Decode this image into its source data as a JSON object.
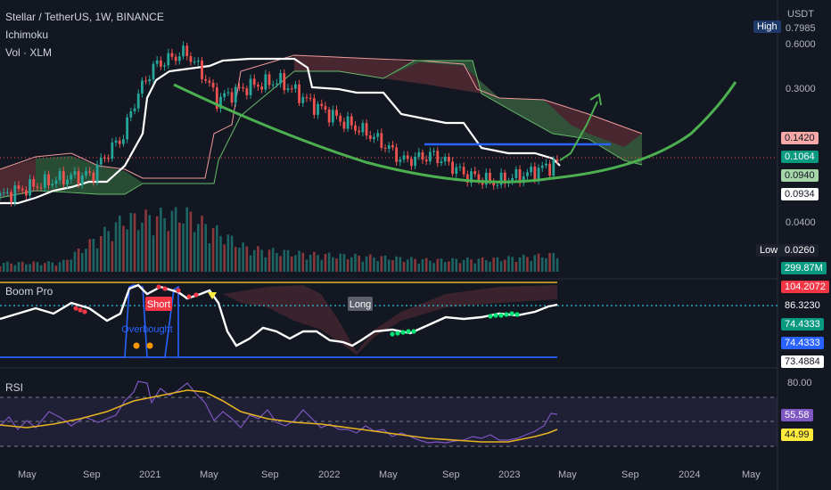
{
  "header": {
    "symbol_line": "Stellar / TetherUS, 1W, BINANCE",
    "indicator_1": "Ichimoku",
    "indicator_2": "Vol · XLM"
  },
  "price_axis": {
    "unit": "USDT",
    "ticks": [
      "0.7985",
      "0.6000",
      "0.3000",
      "0.0400"
    ],
    "high_label": "High",
    "low_label": "Low",
    "badges": [
      {
        "text": "0.1420",
        "bg": "#f7a9a7",
        "fg": "#131722"
      },
      {
        "text": "0.1064",
        "bg": "#089981",
        "fg": "#ffffff"
      },
      {
        "text": "0.0940",
        "bg": "#a5d6a7",
        "fg": "#131722"
      },
      {
        "text": "0.0934",
        "bg": "#ffffff",
        "fg": "#131722"
      },
      {
        "text": "0.0260",
        "bg": "#1e222d",
        "fg": "#ffffff"
      },
      {
        "text": "299.87M",
        "bg": "#089981",
        "fg": "#ffffff"
      }
    ]
  },
  "boom_pane": {
    "title": "Boom Pro",
    "short_label": "Short",
    "long_label": "Long",
    "overbought_label": "Overbought",
    "badges": [
      {
        "text": "104.2072",
        "bg": "#f23645",
        "fg": "#ffffff"
      },
      {
        "text": "86.3230",
        "bg": "#131722",
        "fg": "#ffffff"
      },
      {
        "text": "74.4333",
        "bg": "#089981",
        "fg": "#ffffff"
      },
      {
        "text": "74.4333",
        "bg": "#2962ff",
        "fg": "#ffffff"
      },
      {
        "text": "73.4884",
        "bg": "#ffffff",
        "fg": "#131722"
      }
    ]
  },
  "rsi_pane": {
    "title": "RSI",
    "tick": "80.00",
    "badges": [
      {
        "text": "55.58",
        "bg": "#7e57c2",
        "fg": "#ffffff"
      },
      {
        "text": "44.99",
        "bg": "#ffeb3b",
        "fg": "#131722"
      }
    ]
  },
  "time_axis": [
    "May",
    "Sep",
    "2021",
    "May",
    "Sep",
    "2022",
    "May",
    "Sep",
    "2023",
    "May",
    "Sep",
    "2024",
    "May"
  ],
  "colors": {
    "background": "#131722",
    "up": "#26a69a",
    "down": "#ef5350",
    "base_line": "#ffffff",
    "cup_curve": "#4caf50",
    "resistance": "#2962ff",
    "cloud_bull": "#2e5b3a",
    "cloud_bear": "#5b2e35",
    "rsi": "#7e57c2",
    "rsi_ma": "#e6b422"
  },
  "chart_data": [
    {
      "type": "line",
      "title": "Stellar / TetherUS, 1W, BINANCE",
      "xlabel": "",
      "ylabel": "USDT",
      "scale": "log",
      "ylim": [
        0.026,
        0.7985
      ],
      "x": [
        "2020-05",
        "2020-07",
        "2020-09",
        "2020-11",
        "2021-01",
        "2021-03",
        "2021-05",
        "2021-07",
        "2021-09",
        "2021-11",
        "2022-01",
        "2022-03",
        "2022-05",
        "2022-07",
        "2022-09",
        "2022-11",
        "2023-01",
        "2023-03",
        "2023-04"
      ],
      "series": [
        {
          "values": [
            0.065,
            0.075,
            0.085,
            0.09,
            0.16,
            0.45,
            0.55,
            0.27,
            0.33,
            0.36,
            0.26,
            0.2,
            0.16,
            0.11,
            0.12,
            0.09,
            0.08,
            0.09,
            0.1064
          ]
        }
      ],
      "annotations": {
        "resistance_level": 0.142,
        "current_close": 0.1064,
        "last_price": 0.0934
      }
    },
    {
      "type": "bar",
      "title": "Vol · XLM",
      "x": [
        "2020-05",
        "2020-09",
        "2021-01",
        "2021-05",
        "2021-09",
        "2022-01",
        "2022-05",
        "2022-09",
        "2023-01",
        "2023-04"
      ],
      "values": [
        150,
        160,
        900,
        1000,
        400,
        300,
        260,
        200,
        220,
        299.87
      ]
    },
    {
      "type": "line",
      "title": "RSI",
      "ylim": [
        20,
        90
      ],
      "x": [
        "2020-05",
        "2020-09",
        "2021-01",
        "2021-05",
        "2021-09",
        "2022-01",
        "2022-05",
        "2022-09",
        "2023-01",
        "2023-03",
        "2023-04"
      ],
      "series": [
        {
          "name": "RSI",
          "values": [
            48,
            55,
            75,
            70,
            50,
            45,
            38,
            35,
            36,
            50,
            55.58
          ]
        },
        {
          "name": "RSI MA",
          "values": [
            50,
            52,
            62,
            70,
            55,
            47,
            40,
            36,
            35,
            40,
            44.99
          ]
        }
      ]
    }
  ]
}
